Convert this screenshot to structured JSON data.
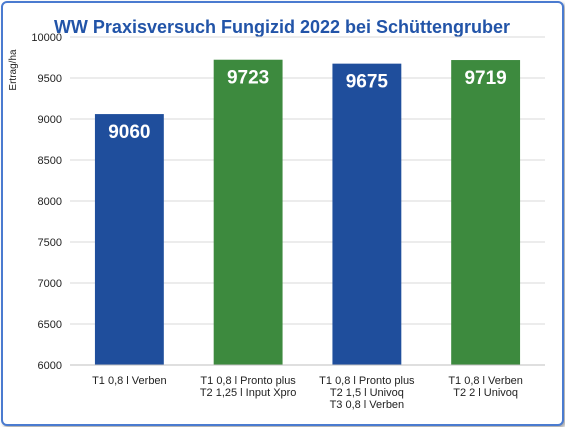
{
  "chart_data": {
    "type": "bar",
    "title": "WW Praxisversuch Fungizid 2022 bei Schüttengruber",
    "ylabel": "Ertrag/ha",
    "xlabel": "",
    "ylim": [
      6000,
      10000
    ],
    "yticks": [
      6000,
      6500,
      7000,
      7500,
      8000,
      8500,
      9000,
      9500,
      10000
    ],
    "ytick_labels": [
      "6000",
      "6500",
      "7000",
      "7500",
      "8000",
      "8500",
      "9000",
      "9500",
      "10000"
    ],
    "grid": true,
    "legend": "none",
    "categories": [
      [
        "T1 0,8 l Verben"
      ],
      [
        "T1 0,8 l Pronto plus",
        "T2 1,25 l Input Xpro"
      ],
      [
        "T1 0,8 l Pronto plus",
        "T2 1,5 l Univoq",
        "T3 0,8 l Verben"
      ],
      [
        "T1 0,8 l Verben",
        "T2 2 l Univoq"
      ]
    ],
    "values": [
      9060,
      9723,
      9675,
      9719
    ],
    "data_labels": [
      "9060",
      "9723",
      "9675",
      "9719"
    ],
    "colors": [
      "#1f4e9c",
      "#3d8a3e",
      "#1f4e9c",
      "#3d8a3e"
    ]
  }
}
